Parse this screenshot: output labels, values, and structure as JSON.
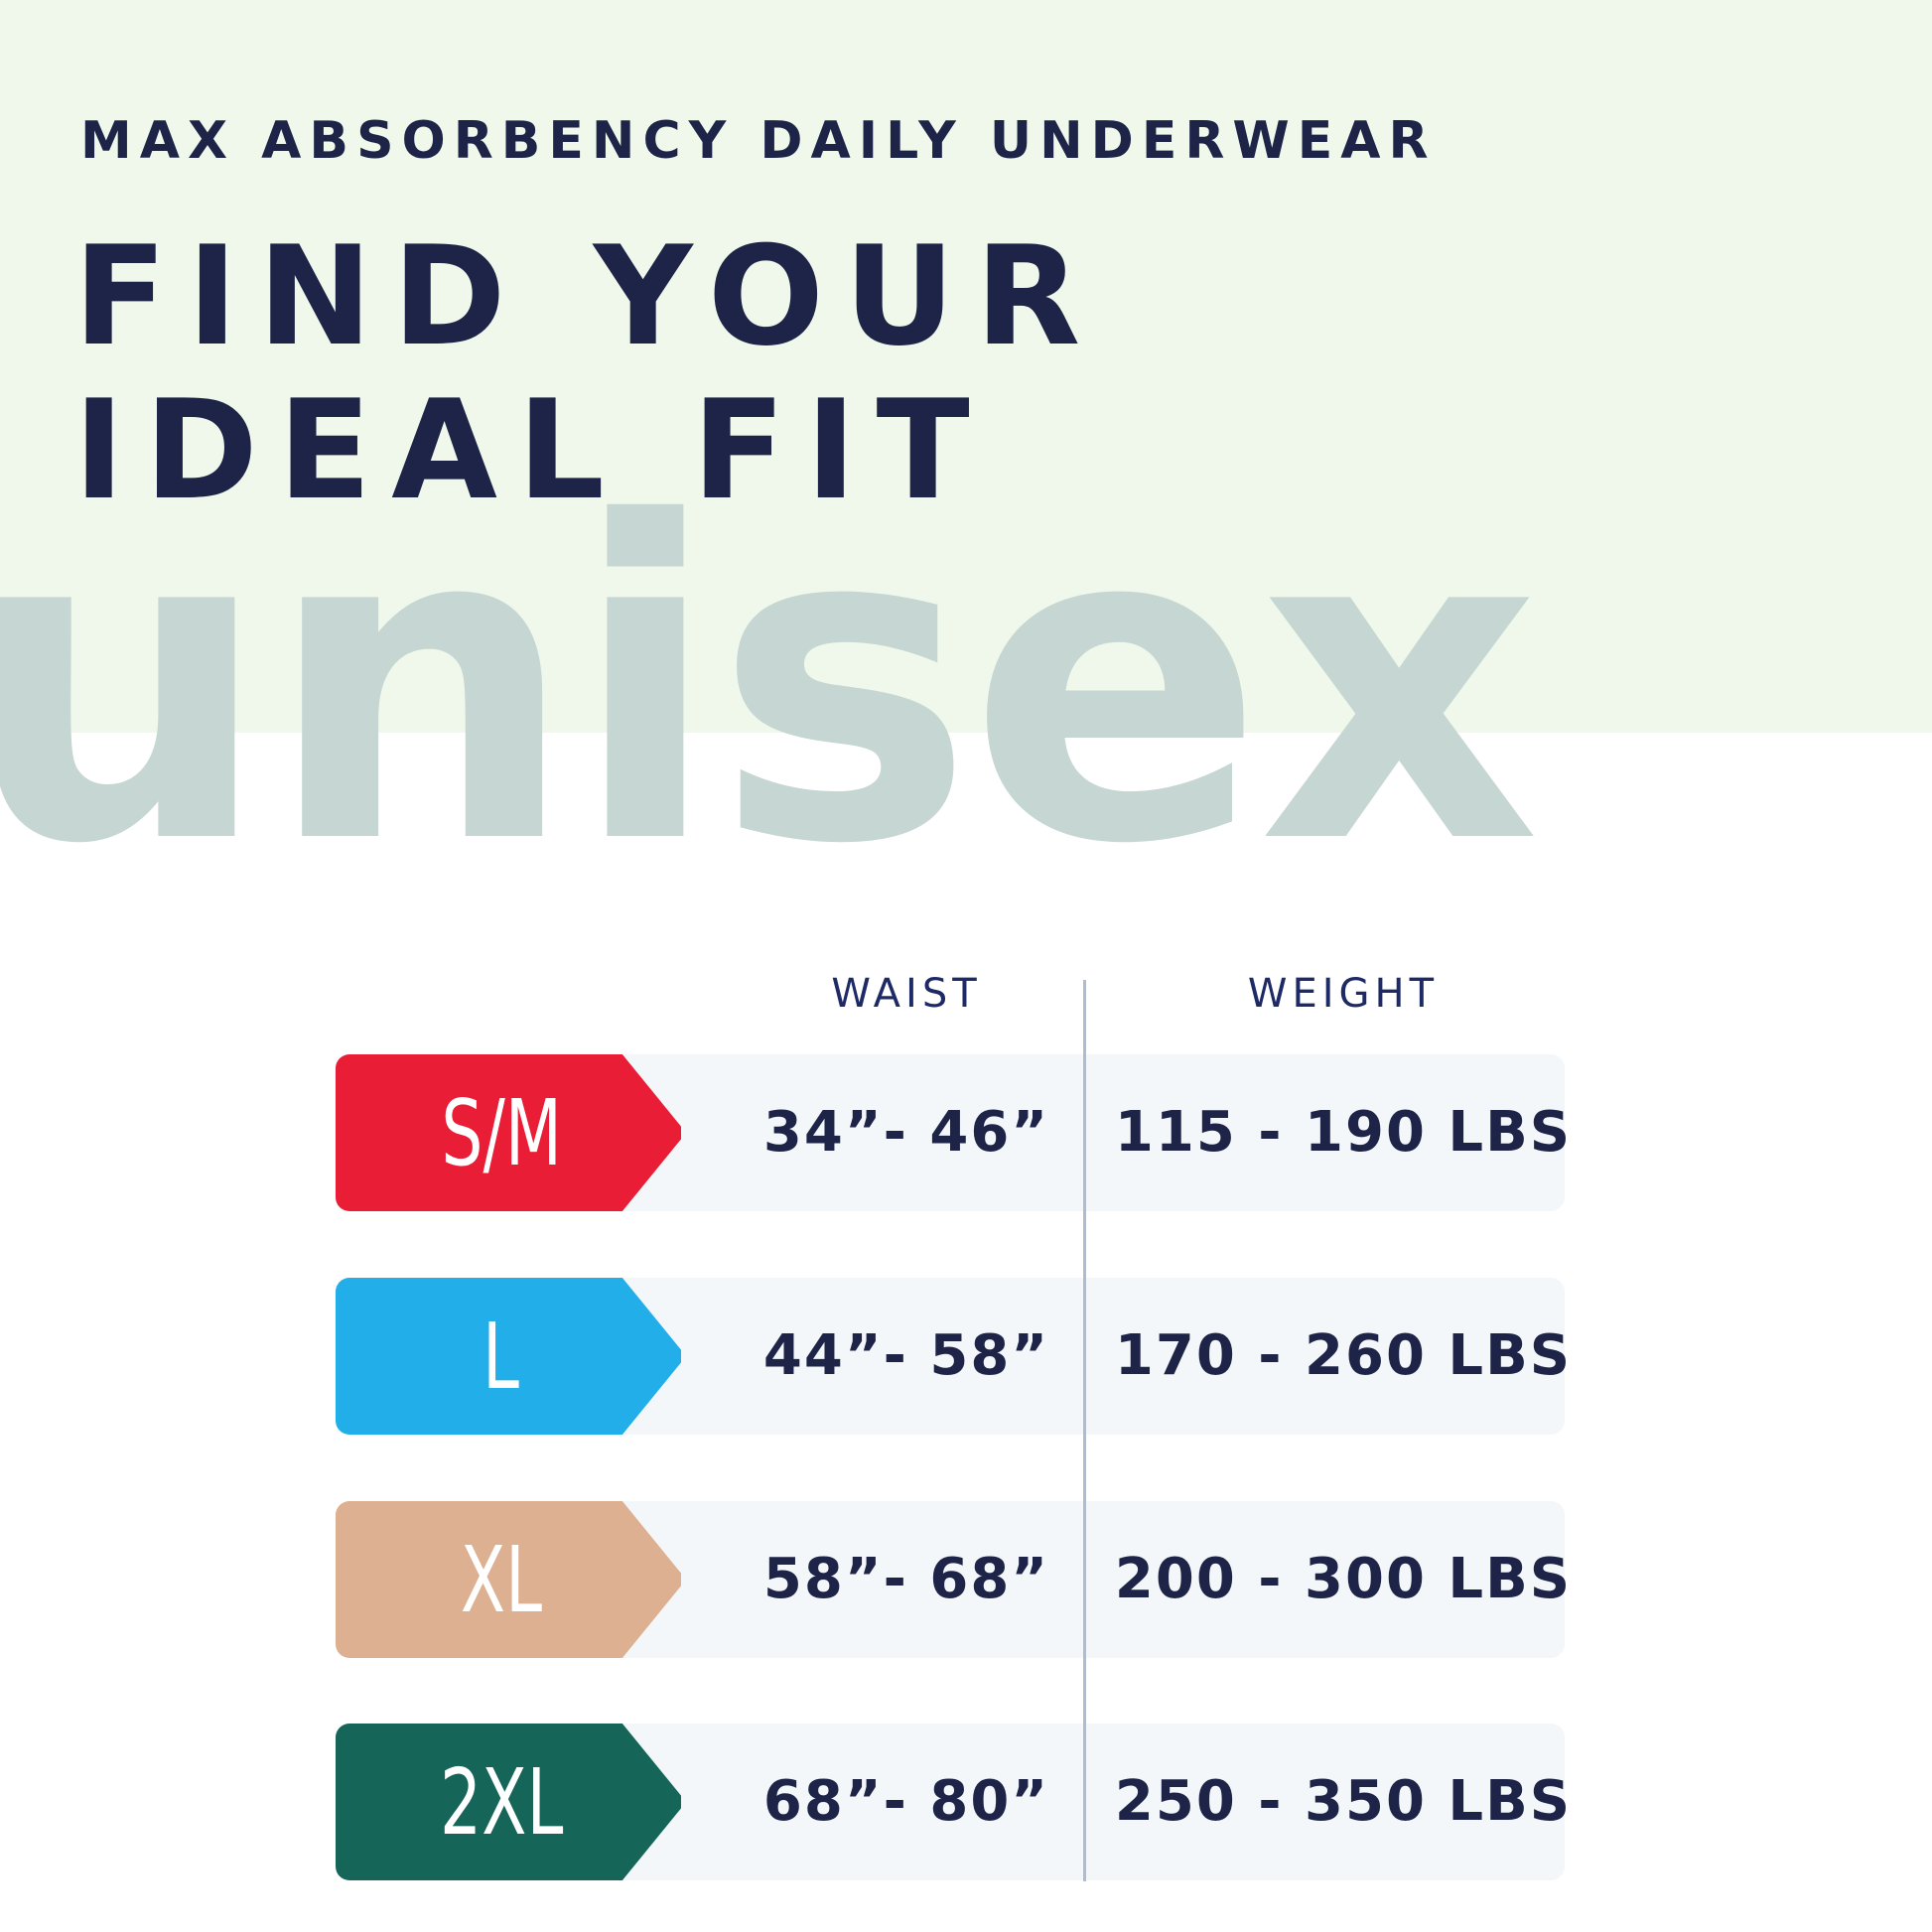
{
  "header": {
    "subtitle": "MAX ABSORBENCY DAILY UNDERWEAR",
    "title_line1": "FIND YOUR",
    "title_line2": "IDEAL FIT",
    "watermark": "unisex"
  },
  "table": {
    "columns": [
      "WAIST",
      "WEIGHT"
    ],
    "rows": [
      {
        "size": "S/M",
        "waist": "34”- 46”",
        "weight": "115 - 190 LBS",
        "color": "#e91d35"
      },
      {
        "size": "L",
        "waist": "44”- 58”",
        "weight": "170 - 260 LBS",
        "color": "#22aee8"
      },
      {
        "size": "XL",
        "waist": "58”- 68”",
        "weight": "200 - 300 LBS",
        "color": "#dcb090"
      },
      {
        "size": "2XL",
        "waist": "68”- 80”",
        "weight": "250 - 350 LBS",
        "color": "#156558"
      }
    ]
  },
  "colors": {
    "navy": "#1e2447",
    "band": "#eff8eb",
    "watermark": "#c5d6d3"
  }
}
